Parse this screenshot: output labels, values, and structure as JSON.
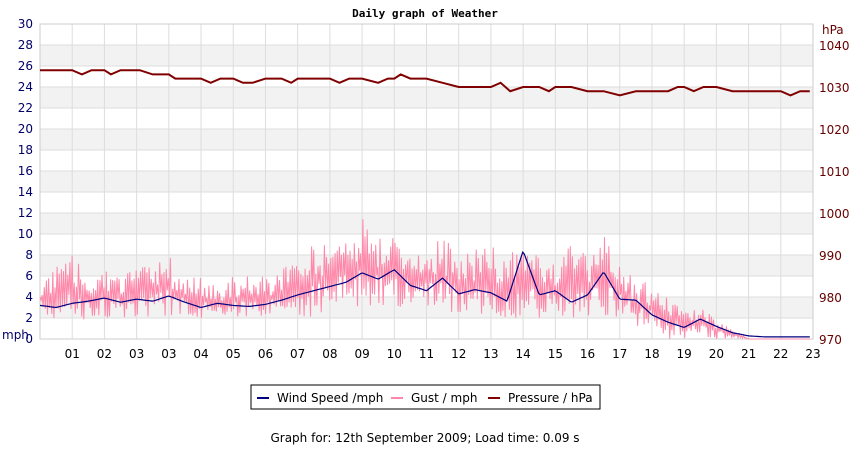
{
  "chart_data": {
    "type": "line",
    "title": "Daily graph of Weather",
    "x_ticks": [
      "01",
      "02",
      "03",
      "03",
      "04",
      "05",
      "06",
      "07",
      "08",
      "09",
      "10",
      "11",
      "12",
      "13",
      "14",
      "15",
      "16",
      "17",
      "18",
      "19",
      "20",
      "21",
      "22",
      "23"
    ],
    "x_range": [
      0,
      24
    ],
    "y_left": {
      "unit": "mph",
      "range": [
        0,
        30
      ],
      "ticks": [
        0,
        2,
        4,
        6,
        8,
        10,
        12,
        14,
        16,
        18,
        20,
        22,
        24,
        26,
        28,
        30
      ],
      "color": "#000066"
    },
    "y_right": {
      "unit": "hPa",
      "range": [
        970,
        1045
      ],
      "ticks": [
        970,
        980,
        990,
        1000,
        1010,
        1020,
        1030,
        1040
      ],
      "color": "#660000"
    },
    "grid": true,
    "legend_position": "bottom-center",
    "series": [
      {
        "name": "Wind Speed /mph",
        "axis": "left",
        "color": "#000080",
        "x": [
          0,
          0.5,
          1,
          1.5,
          2,
          2.5,
          3,
          3.5,
          4,
          4.5,
          5,
          5.5,
          6,
          6.5,
          7,
          7.5,
          8,
          8.5,
          9,
          9.5,
          10,
          10.5,
          11,
          11.5,
          12,
          12.5,
          13,
          13.5,
          14,
          14.5,
          15,
          15.5,
          16,
          16.5,
          17,
          17.5,
          18,
          18.5,
          19,
          19.5,
          20,
          20.5,
          21,
          21.5,
          22,
          22.5,
          23,
          23.5,
          23.9
        ],
        "y": [
          3.2,
          3.0,
          3.4,
          3.6,
          3.9,
          3.5,
          3.8,
          3.6,
          4.1,
          3.5,
          3.0,
          3.4,
          3.2,
          3.1,
          3.3,
          3.7,
          4.2,
          4.6,
          5.0,
          5.4,
          6.3,
          5.7,
          6.6,
          5.1,
          4.6,
          5.8,
          4.3,
          4.7,
          4.4,
          3.6,
          8.4,
          4.2,
          4.6,
          3.5,
          4.2,
          6.4,
          3.8,
          3.7,
          2.3,
          1.6,
          1.1,
          1.9,
          1.2,
          0.6,
          0.3,
          0.2,
          0.2,
          0.2,
          0.2
        ]
      },
      {
        "name": "Gust / mph",
        "axis": "left",
        "color": "#ff88aa",
        "x": [
          0,
          0.5,
          1,
          1.5,
          2,
          2.5,
          3,
          3.5,
          4,
          4.5,
          5,
          5.5,
          6,
          6.5,
          7,
          7.5,
          8,
          8.5,
          9,
          9.5,
          10,
          10.5,
          11,
          11.5,
          12,
          12.5,
          13,
          13.5,
          14,
          14.5,
          15,
          15.5,
          16,
          16.5,
          17,
          17.5,
          18,
          18.5,
          19,
          19.5,
          20,
          20.5,
          21,
          21.5,
          22,
          22.5,
          23,
          23.5,
          23.9
        ],
        "y_low": [
          2,
          2,
          1,
          2,
          2,
          2,
          2,
          2,
          2,
          2,
          2,
          2,
          2,
          2,
          2,
          2,
          2,
          2,
          3,
          3,
          3,
          3,
          3,
          3,
          3,
          2,
          2,
          2,
          2,
          2,
          2,
          2,
          2,
          2,
          2,
          2,
          2,
          1,
          1,
          0,
          0,
          0,
          0,
          0,
          0,
          0,
          0,
          0,
          0
        ],
        "y_high": [
          6,
          7,
          8,
          6,
          7,
          6,
          7,
          7,
          8,
          6,
          6,
          5,
          6,
          6,
          6,
          7,
          8,
          9,
          9,
          11,
          12,
          10,
          10,
          9,
          9,
          10,
          8,
          9,
          9,
          8,
          9,
          8,
          8,
          9,
          8,
          10,
          7,
          6,
          5,
          4,
          3,
          3,
          2,
          1,
          0,
          0,
          0,
          0,
          0
        ]
      },
      {
        "name": "Pressure / hPa",
        "axis": "right",
        "color": "#800000",
        "x": [
          0,
          1,
          1.3,
          1.6,
          2,
          2.2,
          2.5,
          3,
          3.1,
          3.5,
          4,
          4.2,
          4.5,
          5,
          5.3,
          5.6,
          6,
          6.3,
          6.6,
          7,
          7.5,
          7.8,
          8,
          9,
          9.3,
          9.6,
          10,
          10.5,
          10.8,
          11,
          11.2,
          11.5,
          12,
          12.5,
          13,
          13.5,
          14,
          14.3,
          14.6,
          15,
          15.5,
          15.8,
          16,
          16.5,
          17,
          17.5,
          18,
          18.5,
          19,
          19.5,
          19.8,
          20,
          20.3,
          20.6,
          21,
          21.5,
          22,
          22.5,
          23,
          23.3,
          23.6,
          23.9
        ],
        "y": [
          1034,
          1034,
          1033,
          1034,
          1034,
          1033,
          1034,
          1034,
          1034,
          1033,
          1033,
          1032,
          1032,
          1032,
          1031,
          1032,
          1032,
          1031,
          1031,
          1032,
          1032,
          1031,
          1032,
          1032,
          1031,
          1032,
          1032,
          1031,
          1032,
          1032,
          1033,
          1032,
          1032,
          1031,
          1030,
          1030,
          1030,
          1031,
          1029,
          1030,
          1030,
          1029,
          1030,
          1030,
          1029,
          1029,
          1028,
          1029,
          1029,
          1029,
          1030,
          1030,
          1029,
          1030,
          1030,
          1029,
          1029,
          1029,
          1029,
          1028,
          1029,
          1029
        ]
      }
    ]
  },
  "footer_text": "Graph for: 12th September 2009; Load time: 0.09 s"
}
